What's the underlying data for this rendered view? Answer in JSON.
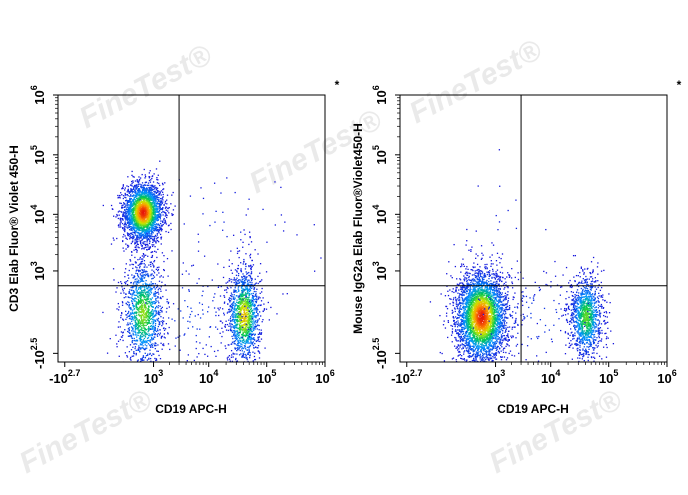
{
  "watermark": "FineTest®",
  "chart_data": [
    {
      "type": "scatter",
      "subtype": "flow-cytometry-density-dot-plot",
      "title": "",
      "xlabel": "CD19 APC-H",
      "ylabel": "CD3 Elab Fluor® Violet 450-H",
      "corner_mark": "*",
      "x_scale": "biexponential",
      "y_scale": "biexponential",
      "x_ticks": [
        {
          "base": "-10",
          "exp": "2.7",
          "value": -501
        },
        {
          "base": "10",
          "exp": "3",
          "value": 1000
        },
        {
          "base": "10",
          "exp": "4",
          "value": 10000
        },
        {
          "base": "10",
          "exp": "5",
          "value": 100000
        },
        {
          "base": "10",
          "exp": "6",
          "value": 1000000
        }
      ],
      "y_ticks": [
        {
          "base": "-10",
          "exp": "2.5",
          "value": -316
        },
        {
          "base": "10",
          "exp": "3",
          "value": 1000
        },
        {
          "base": "10",
          "exp": "4",
          "value": 10000
        },
        {
          "base": "10",
          "exp": "5",
          "value": 100000
        },
        {
          "base": "10",
          "exp": "6",
          "value": 1000000
        }
      ],
      "gate_x": 3000,
      "gate_y": 500,
      "populations": [
        {
          "x": 600,
          "y": 11000,
          "sx": 0.17,
          "sy": 0.25,
          "n": 2600,
          "peak": 1.0
        },
        {
          "x": 600,
          "y": 80,
          "sx": 0.17,
          "sy": 0.45,
          "n": 1300,
          "peak": 0.6
        },
        {
          "x": 40000,
          "y": 60,
          "sx": 0.14,
          "sy": 0.4,
          "n": 1300,
          "peak": 0.75
        },
        {
          "x": 5000,
          "y": 80,
          "sx": 0.55,
          "sy": 0.45,
          "n": 140,
          "peak": 0.08
        },
        {
          "x": 40000,
          "y": 600,
          "sx": 0.09,
          "sy": 0.55,
          "n": 60,
          "peak": 0.05
        },
        {
          "x": 20000,
          "y": 8000,
          "sx": 0.7,
          "sy": 0.5,
          "n": 40,
          "peak": 0.04
        }
      ]
    },
    {
      "type": "scatter",
      "subtype": "flow-cytometry-density-dot-plot",
      "title": "",
      "xlabel": "CD19 APC-H",
      "ylabel": "Mouse IgG2a Elab Fluor®Violet450-H",
      "corner_mark": "*",
      "x_scale": "biexponential",
      "y_scale": "biexponential",
      "x_ticks": [
        {
          "base": "-10",
          "exp": "2.7",
          "value": -501
        },
        {
          "base": "10",
          "exp": "3",
          "value": 1000
        },
        {
          "base": "10",
          "exp": "4",
          "value": 10000
        },
        {
          "base": "10",
          "exp": "5",
          "value": 100000
        },
        {
          "base": "10",
          "exp": "6",
          "value": 1000000
        }
      ],
      "y_ticks": [
        {
          "base": "-10",
          "exp": "2.5",
          "value": -316
        },
        {
          "base": "10",
          "exp": "3",
          "value": 1000
        },
        {
          "base": "10",
          "exp": "4",
          "value": 10000
        },
        {
          "base": "10",
          "exp": "5",
          "value": 100000
        },
        {
          "base": "10",
          "exp": "6",
          "value": 1000000
        }
      ],
      "gate_x": 3000,
      "gate_y": 500,
      "populations": [
        {
          "x": 500,
          "y": 50,
          "sx": 0.22,
          "sy": 0.38,
          "n": 3600,
          "peak": 1.0
        },
        {
          "x": 40000,
          "y": 50,
          "sx": 0.14,
          "sy": 0.35,
          "n": 1200,
          "peak": 0.55
        },
        {
          "x": 5000,
          "y": 60,
          "sx": 0.55,
          "sy": 0.4,
          "n": 140,
          "peak": 0.08
        },
        {
          "x": 1500,
          "y": 3000,
          "sx": 0.5,
          "sy": 0.8,
          "n": 25,
          "peak": 0.03
        }
      ]
    }
  ]
}
